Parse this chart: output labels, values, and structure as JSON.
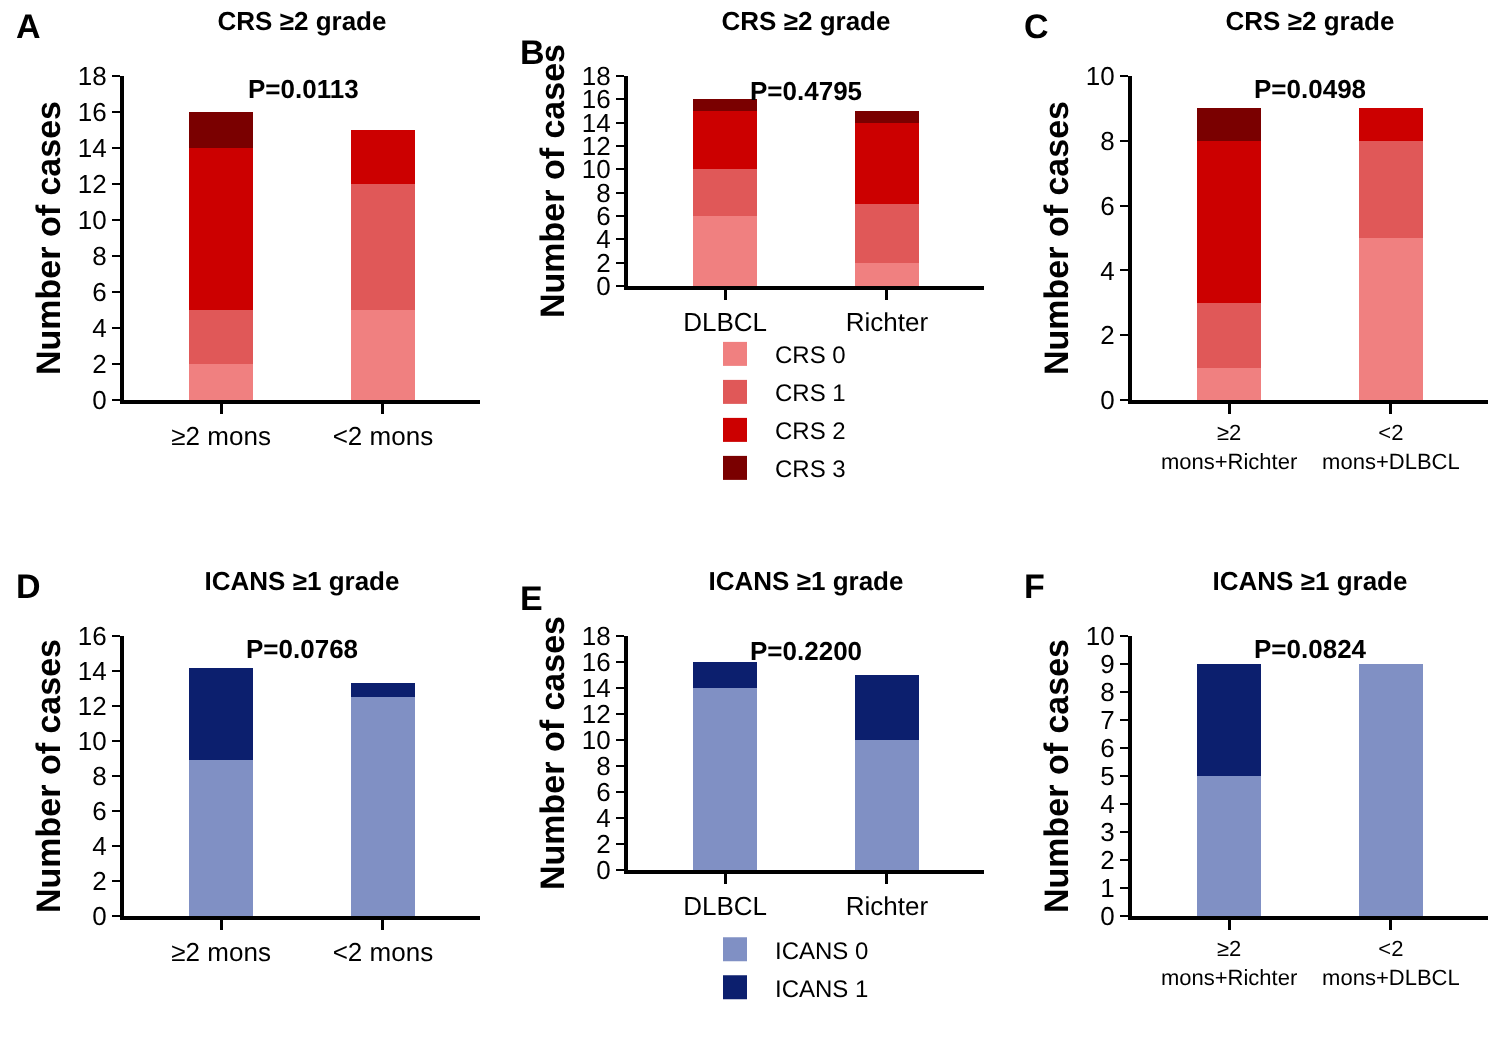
{
  "chart_data": [
    {
      "type": "bar",
      "title": "CRS ≥2 grade",
      "subtitle": "P=0.0113",
      "ylabel": "Number of cases",
      "annotations": [
        "A"
      ],
      "categories": [
        "≥2 mons",
        "<2 mons"
      ],
      "stacked": true,
      "grid": false,
      "legend": false,
      "ylim": [
        0,
        18
      ],
      "yticks": [
        0,
        2,
        4,
        6,
        8,
        10,
        12,
        14,
        16,
        18
      ],
      "series": [
        {
          "color": "#f08080",
          "values": [
            2,
            5
          ]
        },
        {
          "color": "#e05858",
          "values": [
            3,
            7
          ]
        },
        {
          "color": "#cc0000",
          "values": [
            9,
            3
          ]
        },
        {
          "color": "#7a0000",
          "values": [
            2,
            0
          ]
        }
      ]
    },
    {
      "type": "bar",
      "title": "CRS ≥2 grade",
      "subtitle": "P=0.4795",
      "ylabel": "Number of cases",
      "annotations": [
        "B"
      ],
      "categories": [
        "DLBCL",
        "Richter"
      ],
      "stacked": true,
      "grid": false,
      "legend": "bottom",
      "ylim": [
        0,
        18
      ],
      "yticks": [
        0,
        2,
        4,
        6,
        8,
        10,
        12,
        14,
        16,
        18
      ],
      "series": [
        {
          "name": "CRS 0",
          "color": "#f08080",
          "values": [
            6,
            2
          ]
        },
        {
          "name": "CRS 1",
          "color": "#e05858",
          "values": [
            4,
            5
          ]
        },
        {
          "name": "CRS 2",
          "color": "#cc0000",
          "values": [
            5,
            7
          ]
        },
        {
          "name": "CRS 3",
          "color": "#7a0000",
          "values": [
            1,
            1
          ]
        }
      ]
    },
    {
      "type": "bar",
      "title": "CRS ≥2 grade",
      "subtitle": "P=0.0498",
      "ylabel": "Number of cases",
      "annotations": [
        "C"
      ],
      "categories": [
        "≥2 mons+Richter",
        "<2 mons+DLBCL"
      ],
      "stacked": true,
      "grid": false,
      "legend": false,
      "ylim": [
        0,
        10
      ],
      "yticks": [
        0,
        2,
        4,
        6,
        8,
        10
      ],
      "series": [
        {
          "color": "#f08080",
          "values": [
            1,
            5
          ]
        },
        {
          "color": "#e05858",
          "values": [
            2,
            3
          ]
        },
        {
          "color": "#cc0000",
          "values": [
            5,
            1
          ]
        },
        {
          "color": "#7a0000",
          "values": [
            1,
            0
          ]
        }
      ]
    },
    {
      "type": "bar",
      "title": "ICANS ≥1 grade",
      "subtitle": "P=0.0768",
      "ylabel": "Number of cases",
      "annotations": [
        "D"
      ],
      "categories": [
        "≥2 mons",
        "<2 mons"
      ],
      "stacked": true,
      "grid": false,
      "legend": false,
      "ylim": [
        0,
        16
      ],
      "yticks": [
        0,
        2,
        4,
        6,
        8,
        10,
        12,
        14,
        16
      ],
      "series": [
        {
          "color": "#8090c4",
          "values": [
            8.9,
            12.5
          ]
        },
        {
          "color": "#0c1f6e",
          "values": [
            5.3,
            0.8
          ]
        }
      ]
    },
    {
      "type": "bar",
      "title": "ICANS ≥1 grade",
      "subtitle": "P=0.2200",
      "ylabel": "Number of cases",
      "annotations": [
        "E"
      ],
      "categories": [
        "DLBCL",
        "Richter"
      ],
      "stacked": true,
      "grid": false,
      "legend": "bottom",
      "ylim": [
        0,
        18
      ],
      "yticks": [
        0,
        2,
        4,
        6,
        8,
        10,
        12,
        14,
        16,
        18
      ],
      "series": [
        {
          "name": "ICANS 0",
          "color": "#8090c4",
          "values": [
            14,
            10
          ]
        },
        {
          "name": "ICANS 1",
          "color": "#0c1f6e",
          "values": [
            2,
            5
          ]
        }
      ]
    },
    {
      "type": "bar",
      "title": "ICANS ≥1 grade",
      "subtitle": "P=0.0824",
      "ylabel": "Number of cases",
      "annotations": [
        "F"
      ],
      "categories": [
        "≥2 mons+Richter",
        "<2 mons+DLBCL"
      ],
      "stacked": true,
      "grid": false,
      "legend": false,
      "ylim": [
        0,
        10
      ],
      "yticks": [
        0,
        1,
        2,
        3,
        4,
        5,
        6,
        7,
        8,
        9,
        10
      ],
      "series": [
        {
          "color": "#8090c4",
          "values": [
            5,
            9
          ]
        },
        {
          "color": "#0c1f6e",
          "values": [
            4,
            0
          ]
        }
      ]
    }
  ]
}
